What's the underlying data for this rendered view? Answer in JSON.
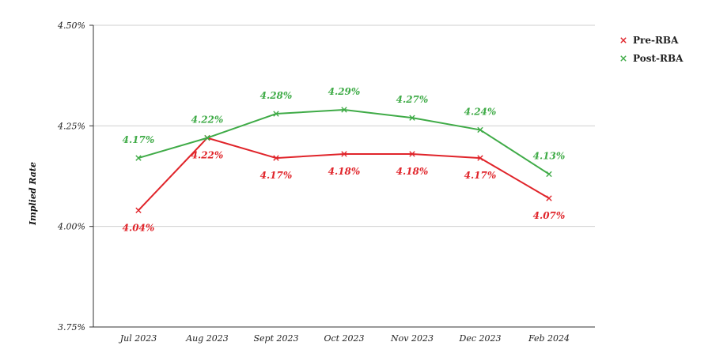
{
  "chart_data": {
    "type": "line",
    "title": "",
    "xlabel": "",
    "ylabel": "Implied Rate",
    "categories": [
      "Jul 2023",
      "Aug 2023",
      "Sept 2023",
      "Oct 2023",
      "Nov 2023",
      "Dec 2023",
      "Feb 2024"
    ],
    "ylim": [
      3.75,
      4.5
    ],
    "yticks": [
      3.75,
      4.0,
      4.25,
      4.5
    ],
    "ytick_labels": [
      "3.75%",
      "4.00%",
      "4.25%",
      "4.50%"
    ],
    "grid": "horizontal",
    "legend_position": "top-right",
    "series": [
      {
        "name": "Pre-RBA",
        "color": "#e0242a",
        "marker": "x",
        "label_position": "below",
        "values": [
          4.04,
          4.22,
          4.17,
          4.18,
          4.18,
          4.17,
          4.07
        ],
        "labels": [
          "4.04%",
          "4.22%",
          "4.17%",
          "4.18%",
          "4.18%",
          "4.17%",
          "4.07%"
        ]
      },
      {
        "name": "Post-RBA",
        "color": "#3fab47",
        "marker": "x",
        "label_position": "above",
        "values": [
          4.17,
          4.22,
          4.28,
          4.29,
          4.27,
          4.24,
          4.13
        ],
        "labels": [
          "4.17%",
          "4.22%",
          "4.28%",
          "4.29%",
          "4.27%",
          "4.24%",
          "4.13%"
        ]
      }
    ]
  }
}
